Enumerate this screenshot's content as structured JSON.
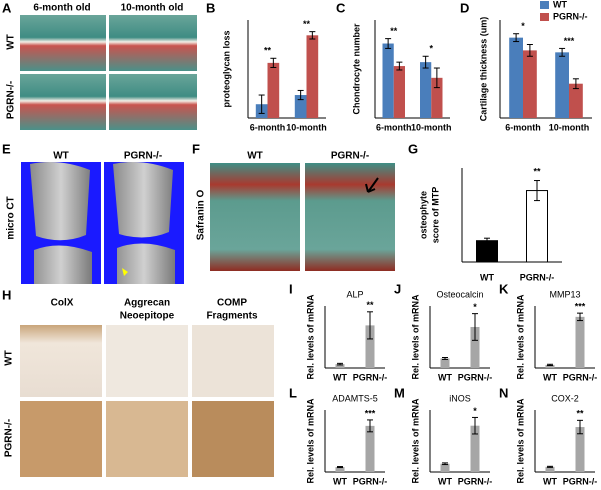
{
  "figure": {
    "A": {
      "letter": "A",
      "col_labels": [
        "6-month old",
        "10-month old"
      ],
      "row_labels": [
        "WT",
        "PGRN-/-"
      ]
    },
    "E": {
      "letter": "E",
      "side_label": "micro CT",
      "col_labels": [
        "WT",
        "PGRN-/-"
      ]
    },
    "F": {
      "letter": "F",
      "side_label": "Safranin O",
      "col_labels": [
        "WT",
        "PGRN-/-"
      ]
    },
    "H": {
      "letter": "H",
      "col_labels": [
        [
          "ColX"
        ],
        [
          "Aggrecan",
          "Neoepitope"
        ],
        [
          "COMP",
          "Fragments"
        ]
      ],
      "row_labels": [
        "WT",
        "PGRN-/-"
      ]
    }
  },
  "chart_data": [
    {
      "type": "bar",
      "letter": "B",
      "ylabel": "proteoglycan loss",
      "categories": [
        "6-month",
        "10-month"
      ],
      "ylim": [
        0,
        3.2
      ],
      "series": [
        {
          "name": "WT",
          "color": "#4a7ebb",
          "values": [
            0.45,
            0.75
          ],
          "errors": [
            0.3,
            0.15
          ]
        },
        {
          "name": "PGRN-/-",
          "color": "#c0504d",
          "values": [
            1.8,
            2.7
          ],
          "errors": [
            0.15,
            0.12
          ]
        }
      ],
      "stars": [
        "**",
        "**"
      ]
    },
    {
      "type": "bar",
      "letter": "C",
      "ylabel": "Chondrocyte number",
      "categories": [
        "6-month",
        "10-month"
      ],
      "ylim": [
        0,
        100
      ],
      "series": [
        {
          "name": "WT",
          "color": "#4a7ebb",
          "values": [
            76,
            57
          ],
          "errors": [
            5,
            6
          ]
        },
        {
          "name": "PGRN-/-",
          "color": "#c0504d",
          "values": [
            53,
            41
          ],
          "errors": [
            4,
            10
          ]
        }
      ],
      "stars": [
        "**",
        "*"
      ]
    },
    {
      "type": "bar",
      "letter": "D",
      "ylabel": "Cartilage thickness (um)",
      "categories": [
        "6-month",
        "10-month"
      ],
      "ylim": [
        0,
        100
      ],
      "legend": "top-right",
      "series": [
        {
          "name": "WT",
          "color": "#4a7ebb",
          "values": [
            82,
            67
          ],
          "errors": [
            4,
            4
          ]
        },
        {
          "name": "PGRN-/-",
          "color": "#c0504d",
          "values": [
            69,
            35
          ],
          "errors": [
            6,
            5
          ]
        }
      ],
      "stars": [
        "*",
        "***"
      ]
    },
    {
      "type": "bar",
      "letter": "G",
      "ylabel": [
        "osteophyte",
        "score of MTP"
      ],
      "categories": [
        "WT",
        "PGRN-/-"
      ],
      "ylim": [
        0,
        0.75
      ],
      "values": [
        0.17,
        0.57
      ],
      "errors": [
        0.02,
        0.08
      ],
      "colors": [
        "#000000",
        "#ffffff"
      ],
      "stars": [
        null,
        "**"
      ]
    },
    {
      "type": "bar",
      "letter": "I",
      "title": "ALP",
      "ylabel": "Rel. levels of mRNA",
      "categories": [
        "WT",
        "PGRN-/-"
      ],
      "ylim": [
        0,
        16
      ],
      "values": [
        1,
        11
      ],
      "errors": [
        0.2,
        3.5
      ],
      "color": "#a6a6a6",
      "stars": [
        null,
        "**"
      ]
    },
    {
      "type": "bar",
      "letter": "J",
      "title": "Osteocalcin",
      "ylabel": "Rel. levels of mRNA",
      "categories": [
        "WT",
        "PGRN-/-"
      ],
      "ylim": [
        0,
        6.5
      ],
      "values": [
        1,
        4.3
      ],
      "errors": [
        0.1,
        1.4
      ],
      "color": "#a6a6a6",
      "stars": [
        null,
        "*"
      ]
    },
    {
      "type": "bar",
      "letter": "K",
      "title": "MMP13",
      "ylabel": "Rel. levels of mRNA",
      "categories": [
        "WT",
        "PGRN-/-"
      ],
      "ylim": [
        0,
        20
      ],
      "values": [
        1,
        16.5
      ],
      "errors": [
        0.2,
        1.2
      ],
      "color": "#a6a6a6",
      "stars": [
        null,
        "***"
      ]
    },
    {
      "type": "bar",
      "letter": "L",
      "title": "ADAMTS-5",
      "ylabel": "Rel. levels of mRNA",
      "categories": [
        "WT",
        "PGRN-/-"
      ],
      "ylim": [
        0,
        12.5
      ],
      "values": [
        1,
        9.3
      ],
      "errors": [
        0.1,
        1.2
      ],
      "color": "#a6a6a6",
      "stars": [
        null,
        "***"
      ]
    },
    {
      "type": "bar",
      "letter": "M",
      "title": "iNOS",
      "ylabel": "Rel. levels of mRNA",
      "categories": [
        "WT",
        "PGRN-/-"
      ],
      "ylim": [
        0,
        7.5
      ],
      "values": [
        1,
        5.6
      ],
      "errors": [
        0.1,
        1
      ],
      "color": "#a6a6a6",
      "stars": [
        null,
        "*"
      ]
    },
    {
      "type": "bar",
      "letter": "N",
      "title": "COX-2",
      "ylabel": "Rel. levels of mRNA",
      "categories": [
        "WT",
        "PGRN-/-"
      ],
      "ylim": [
        0,
        12
      ],
      "values": [
        1,
        8.7
      ],
      "errors": [
        0.1,
        1.3
      ],
      "color": "#a6a6a6",
      "stars": [
        null,
        "**"
      ]
    }
  ]
}
